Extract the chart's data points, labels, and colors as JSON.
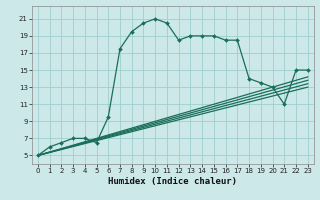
{
  "xlabel": "Humidex (Indice chaleur)",
  "bg_color": "#cce8e8",
  "grid_color": "#9ecece",
  "line_color": "#1a6e5a",
  "xlim": [
    -0.5,
    23.5
  ],
  "ylim": [
    4,
    22.5
  ],
  "xticks": [
    0,
    1,
    2,
    3,
    4,
    5,
    6,
    7,
    8,
    9,
    10,
    11,
    12,
    13,
    14,
    15,
    16,
    17,
    18,
    19,
    20,
    21,
    22,
    23
  ],
  "yticks": [
    5,
    7,
    9,
    11,
    13,
    15,
    17,
    19,
    21
  ],
  "main_x": [
    0,
    1,
    2,
    3,
    4,
    5,
    6,
    7,
    8,
    9,
    10,
    11,
    12,
    13,
    14,
    15,
    16,
    17,
    18,
    19,
    20,
    21,
    22,
    23
  ],
  "main_y": [
    5,
    6,
    6.5,
    7,
    7,
    6.5,
    9.5,
    17.5,
    19.5,
    20.5,
    21,
    20.5,
    18.5,
    19,
    19,
    19,
    18.5,
    18.5,
    14,
    13.5,
    13,
    11,
    15,
    15
  ],
  "diag_lines": [
    {
      "x": [
        0,
        23
      ],
      "y": [
        5,
        13.0
      ]
    },
    {
      "x": [
        0,
        23
      ],
      "y": [
        5,
        13.4
      ]
    },
    {
      "x": [
        0,
        23
      ],
      "y": [
        5,
        13.8
      ]
    },
    {
      "x": [
        0,
        23
      ],
      "y": [
        5,
        14.2
      ]
    }
  ],
  "xlabel_fontsize": 6.5,
  "tick_fontsize": 5.0,
  "linewidth": 0.9,
  "markersize": 2.0
}
